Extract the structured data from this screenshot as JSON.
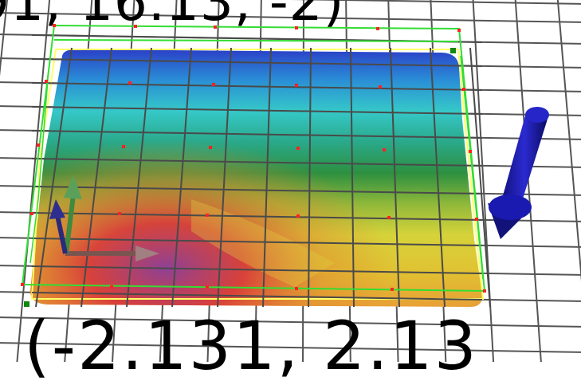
{
  "viewport": {
    "coord_top_label": "91, 16.13, -2)",
    "coord_bottom_label": "(-2.131, 2.13"
  },
  "colors": {
    "background": "#ffffff",
    "grid": "#555555",
    "bounding_box": "#33dd33",
    "surface_outline": "#ffff66",
    "control_point": "#ff2222",
    "light_arrow": "#1a1aa0",
    "axis_x": "#8a5a55",
    "axis_y": "#3a8a3a",
    "axis_z": "#2a2a7a"
  },
  "icons": {
    "light_direction": "arrow-down-icon",
    "gizmo": "transform-gizmo-icon"
  }
}
